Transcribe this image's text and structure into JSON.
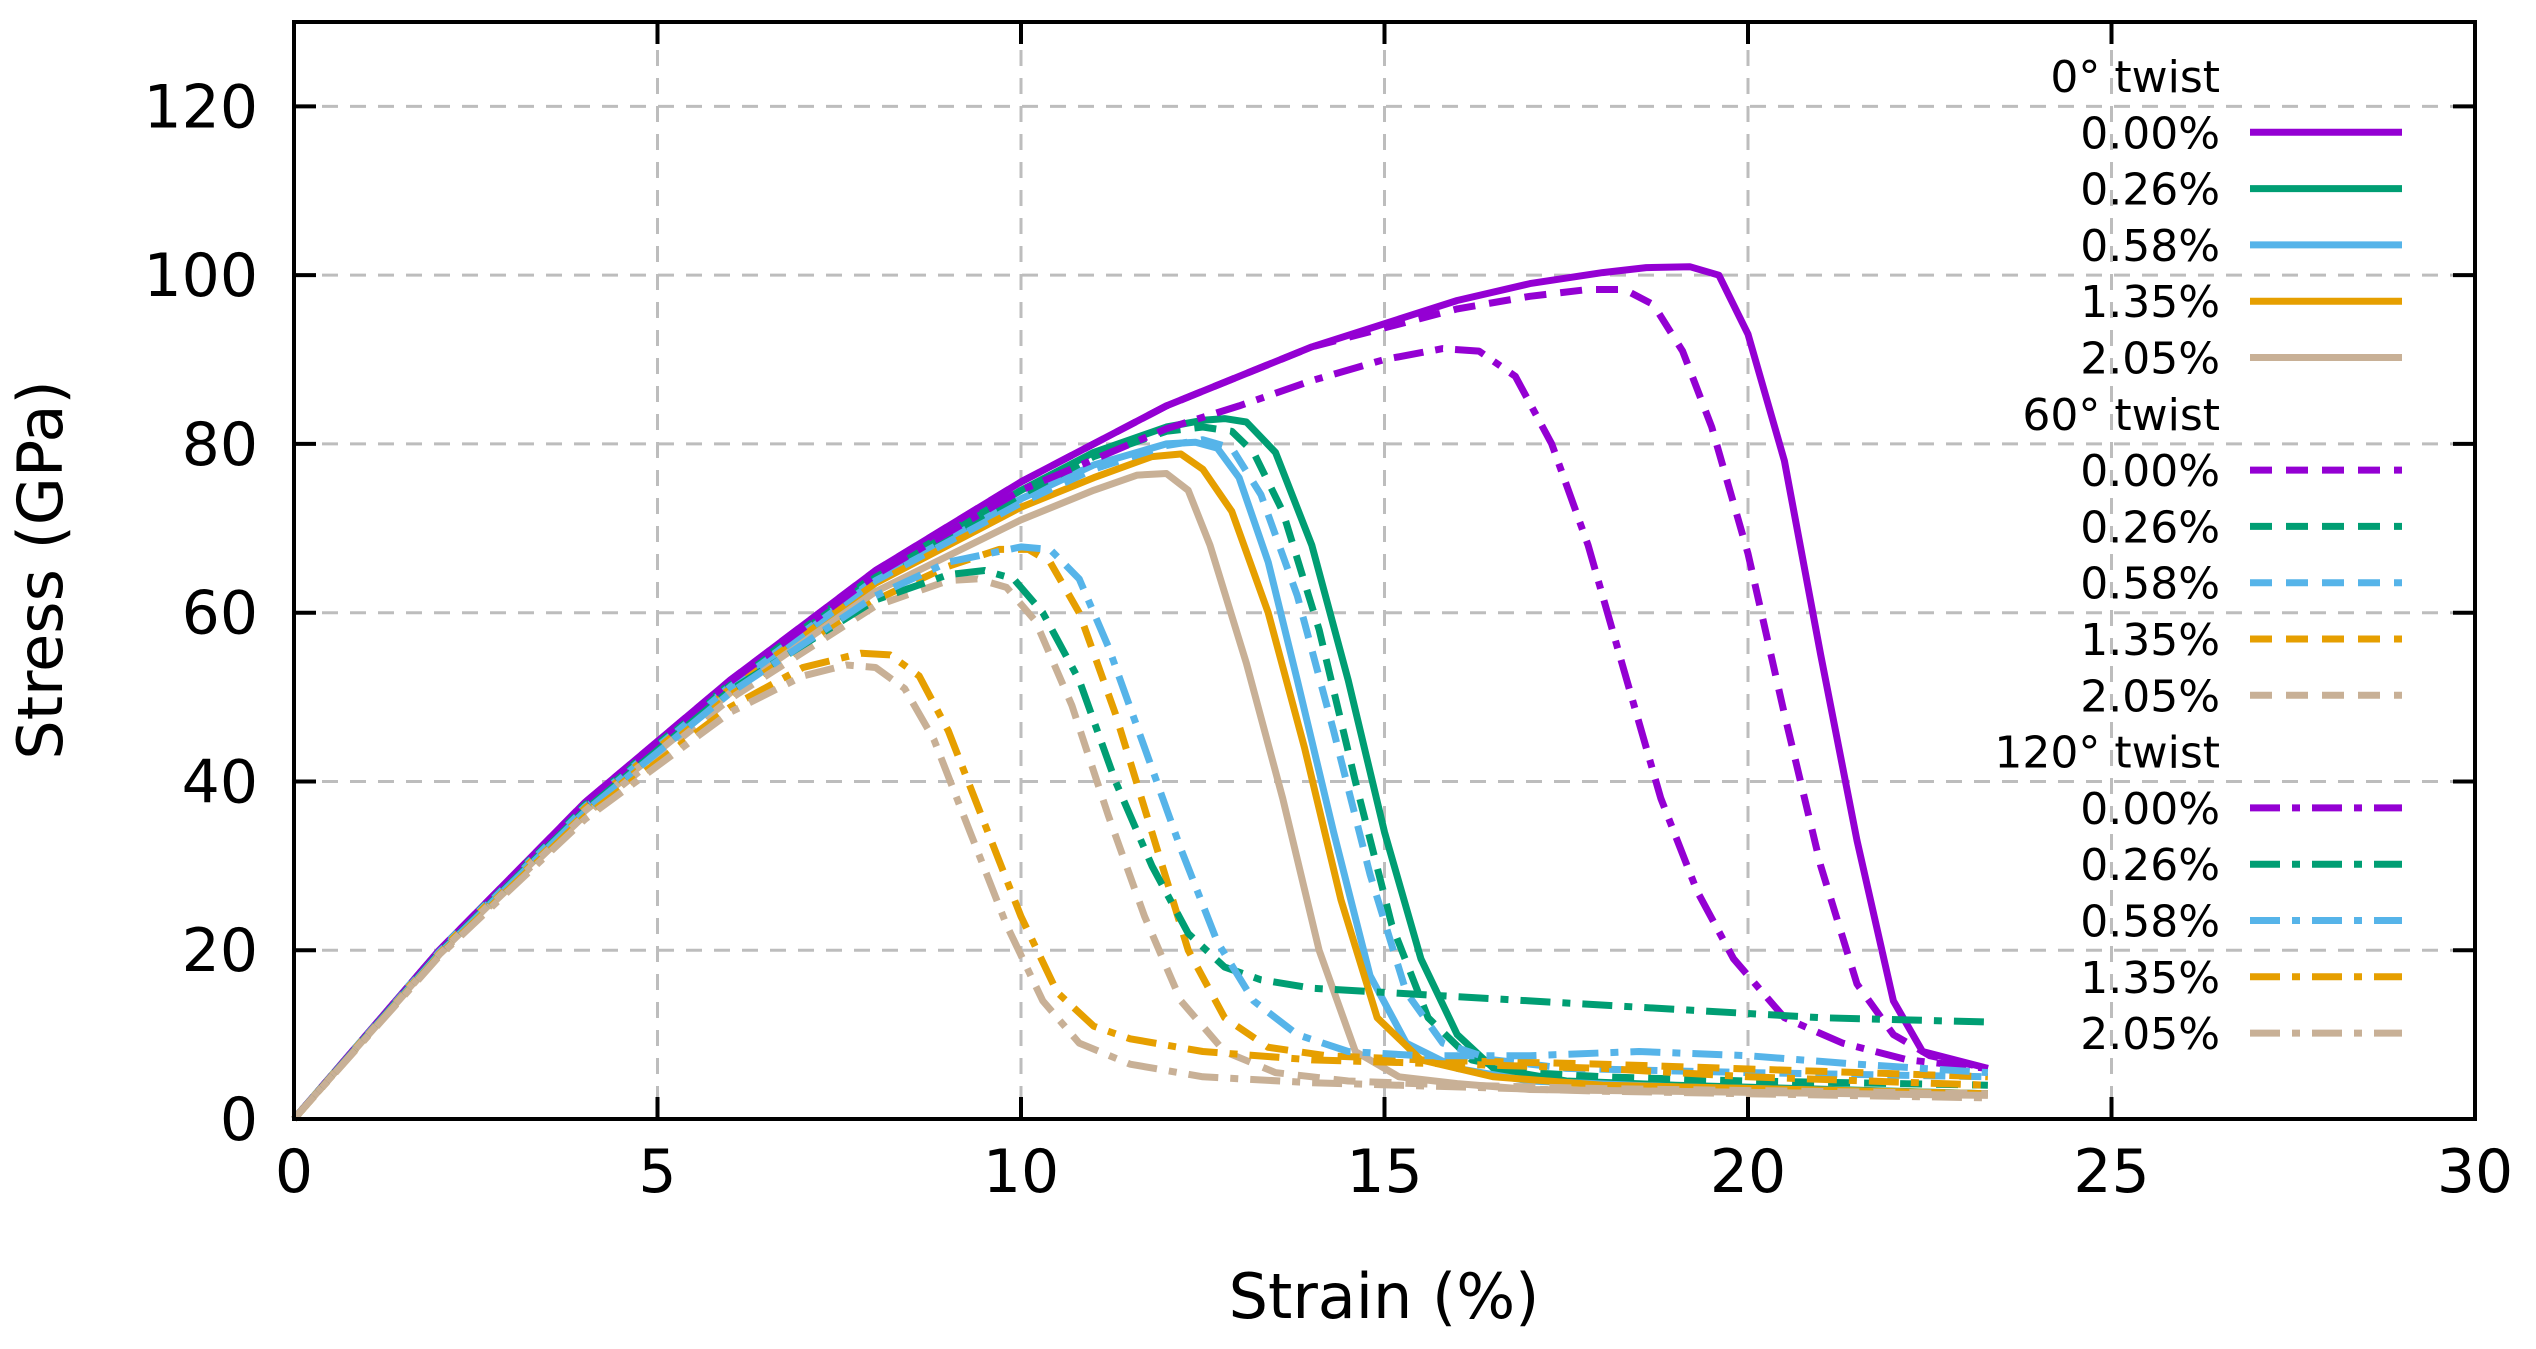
{
  "chart_data": {
    "type": "line",
    "title": "",
    "xlabel": "Strain (%)",
    "ylabel": "Stress (GPa)",
    "xlim": [
      0,
      30
    ],
    "ylim": [
      0,
      130
    ],
    "xticks": [
      0,
      5,
      10,
      15,
      20,
      25,
      30
    ],
    "yticks": [
      0,
      20,
      40,
      60,
      80,
      100,
      120
    ],
    "grid": true,
    "legend_position": "right",
    "colors": {
      "0.00%": "#9400d3",
      "0.26%": "#009e73",
      "0.58%": "#56b4e9",
      "1.35%": "#e69f00",
      "2.05%": "#c8b096"
    },
    "groups": [
      {
        "title": "0° twist",
        "style": "solid",
        "series": [
          {
            "name": "0.00%",
            "x": [
              0,
              2,
              4,
              6,
              8,
              10,
              12,
              14,
              16,
              17,
              18,
              18.6,
              19.2,
              19.6,
              20,
              20.5,
              21,
              21.5,
              22,
              22.4,
              23.3
            ],
            "y": [
              0,
              20,
              37.5,
              52,
              65,
              75.5,
              84.5,
              91.5,
              97,
              99,
              100.3,
              100.9,
              101,
              100,
              93,
              78,
              55,
              33,
              14,
              8,
              6
            ]
          },
          {
            "name": "0.26%",
            "x": [
              0,
              2,
              4,
              6,
              8,
              10,
              11,
              12,
              12.5,
              12.8,
              13.1,
              13.5,
              14,
              14.5,
              15,
              15.5,
              16,
              16.5,
              17.5,
              19,
              23.3
            ],
            "y": [
              0,
              20,
              37.2,
              51.6,
              64.5,
              74.5,
              79,
              82,
              82.8,
              83,
              82.6,
              79,
              68,
              52,
              34,
              19,
              10,
              6,
              4.5,
              4,
              3
            ]
          },
          {
            "name": "0.58%",
            "x": [
              0,
              2,
              4,
              6,
              8,
              10,
              11,
              12,
              12.4,
              12.7,
              13,
              13.4,
              13.8,
              14.3,
              14.8,
              15.3,
              16,
              17,
              19,
              23.3
            ],
            "y": [
              0,
              20,
              37,
              51.3,
              64,
              73.5,
              77.5,
              80,
              80.2,
              79.5,
              76,
              66,
              52,
              34,
              17,
              9,
              6,
              4.5,
              3.8,
              3
            ]
          },
          {
            "name": "1.35%",
            "x": [
              0,
              2,
              4,
              6,
              8,
              10,
              11,
              11.8,
              12.2,
              12.5,
              12.9,
              13.4,
              13.9,
              14.4,
              14.9,
              15.5,
              16.5,
              18,
              23.3
            ],
            "y": [
              0,
              19.8,
              36.8,
              51,
              63.5,
              72.5,
              76,
              78.5,
              78.8,
              77,
              72,
              60,
              44,
              26,
              12,
              7,
              5,
              4,
              3
            ]
          },
          {
            "name": "2.05%",
            "x": [
              0,
              2,
              4,
              6,
              8,
              10,
              11,
              11.6,
              12,
              12.3,
              12.6,
              13.1,
              13.6,
              14.1,
              14.6,
              15.2,
              16,
              17,
              23.3
            ],
            "y": [
              0,
              19.6,
              36.5,
              50.5,
              62.5,
              71,
              74.5,
              76.3,
              76.5,
              74.5,
              68,
              54,
              38,
              20,
              8,
              5,
              4.2,
              3.5,
              2.8
            ]
          }
        ]
      },
      {
        "title": "60° twist",
        "style": "dashed",
        "series": [
          {
            "name": "0.00%",
            "x": [
              0,
              2,
              4,
              6,
              8,
              10,
              12,
              14,
              16,
              17,
              17.8,
              18.3,
              18.7,
              19.1,
              19.5,
              20,
              20.5,
              21,
              21.5,
              22,
              22.5,
              23.3
            ],
            "y": [
              0,
              20,
              37.5,
              52,
              65,
              75.5,
              84.5,
              91.5,
              96,
              97.5,
              98.3,
              98.3,
              96.5,
              91,
              82,
              67,
              48,
              30,
              16,
              10,
              7.5,
              6
            ]
          },
          {
            "name": "0.26%",
            "x": [
              0,
              2,
              4,
              6,
              8,
              10,
              11,
              12,
              12.5,
              12.9,
              13.2,
              13.6,
              14.1,
              14.6,
              15.1,
              15.6,
              16.2,
              17,
              18,
              20,
              23.3
            ],
            "y": [
              0,
              19.8,
              37,
              51.4,
              64.2,
              74,
              78.5,
              81.5,
              82,
              81.5,
              79,
              72,
              58,
              40,
              23,
              12,
              7,
              5.5,
              5,
              4.5,
              4
            ]
          },
          {
            "name": "0.58%",
            "x": [
              0,
              2,
              4,
              6,
              8,
              10,
              11,
              12,
              12.5,
              12.9,
              13.3,
              13.8,
              14.3,
              14.8,
              15.3,
              15.8,
              16.5,
              17.5,
              20,
              23.3
            ],
            "y": [
              0,
              19.8,
              36.8,
              51.2,
              63.8,
              73,
              77,
              79.8,
              80.5,
              79.5,
              74,
              62,
              46,
              29,
              15,
              9,
              7,
              6,
              5.5,
              5
            ]
          },
          {
            "name": "1.35%",
            "x": [
              0,
              2,
              4,
              6,
              8,
              9,
              9.7,
              10.1,
              10.4,
              10.8,
              11.3,
              11.8,
              12.3,
              12.8,
              13.4,
              14.2,
              15.5,
              18,
              23.3
            ],
            "y": [
              0,
              19.6,
              36.2,
              50.2,
              61.5,
              65.5,
              67.5,
              67.5,
              66,
              60,
              48,
              34,
              20,
              12,
              8.5,
              7.5,
              7,
              6.5,
              5
            ]
          },
          {
            "name": "2.05%",
            "x": [
              0,
              2,
              4,
              6,
              8,
              9,
              9.4,
              9.8,
              10.2,
              10.7,
              11.2,
              11.7,
              12.2,
              12.8,
              13.5,
              14.5,
              16,
              18,
              23.3
            ],
            "y": [
              0,
              19.5,
              36,
              49.8,
              60.8,
              63.8,
              64,
              63,
              59,
              49,
              36,
              24,
              14,
              8,
              5.5,
              4.5,
              4,
              3.6,
              3
            ]
          }
        ]
      },
      {
        "title": "120° twist",
        "style": "dashdot",
        "series": [
          {
            "name": "0.00%",
            "x": [
              0,
              2,
              4,
              6,
              8,
              10,
              12,
              13,
              14,
              15,
              15.8,
              16.3,
              16.8,
              17.3,
              17.8,
              18.3,
              18.8,
              19.3,
              19.8,
              20.5,
              21.3,
              22.2,
              23.3
            ],
            "y": [
              0,
              20,
              37.4,
              51.8,
              64.5,
              74.5,
              81.8,
              84.5,
              87.5,
              90,
              91.3,
              91,
              88,
              80,
              68,
              53,
              38,
              27,
              19,
              12,
              9,
              7,
              6
            ]
          },
          {
            "name": "0.26%",
            "x": [
              0,
              2,
              4,
              6,
              8,
              9,
              9.5,
              9.9,
              10.3,
              10.8,
              11.3,
              11.8,
              12.3,
              12.8,
              13.3,
              14,
              15,
              17,
              19,
              21,
              23.3
            ],
            "y": [
              0,
              19.7,
              36.6,
              50.8,
              61.5,
              64.5,
              65,
              64,
              60,
              52,
              40,
              30,
              22,
              18,
              16.5,
              15.5,
              15,
              14,
              13,
              12,
              11.5
            ]
          },
          {
            "name": "0.58%",
            "x": [
              0,
              2,
              4,
              6,
              8,
              9,
              10,
              10.4,
              10.8,
              11.2,
              11.7,
              12.2,
              12.7,
              13.2,
              13.8,
              14.5,
              15.5,
              17,
              18.5,
              20,
              21.5,
              23.3
            ],
            "y": [
              0,
              19.6,
              36.4,
              50.5,
              62,
              66,
              67.8,
              67.5,
              64,
              56,
              44,
              32,
              21,
              14,
              10,
              8,
              7.5,
              7.5,
              8,
              7.5,
              6.5,
              5.5
            ]
          },
          {
            "name": "1.35%",
            "x": [
              0,
              2,
              4,
              6,
              7,
              7.8,
              8.2,
              8.6,
              9,
              9.5,
              10,
              10.5,
              11,
              11.5,
              12.5,
              14,
              16,
              18,
              20,
              23.3
            ],
            "y": [
              0,
              19.4,
              35.8,
              48.8,
              53.5,
              55.2,
              55,
              52.5,
              46,
              35,
              24,
              15,
              11,
              9.5,
              8,
              7,
              6.5,
              6,
              5,
              4
            ]
          },
          {
            "name": "2.05%",
            "x": [
              0,
              2,
              4,
              6,
              7,
              7.6,
              8,
              8.4,
              8.8,
              9.3,
              9.8,
              10.3,
              10.8,
              11.5,
              12.5,
              14,
              16,
              18,
              23.3
            ],
            "y": [
              0,
              19.3,
              35.5,
              48.2,
              52.5,
              53.8,
              53.5,
              51,
              45,
              34,
              23,
              14,
              9,
              6.5,
              5,
              4.3,
              3.8,
              3.3,
              2.5
            ]
          }
        ]
      }
    ]
  }
}
